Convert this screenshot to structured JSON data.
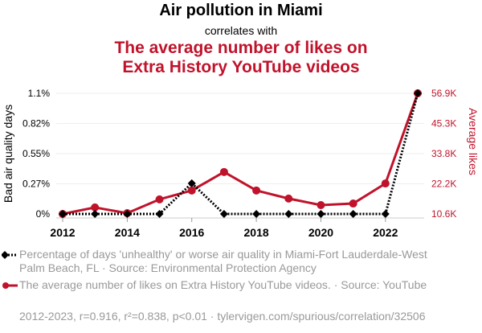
{
  "header": {
    "title": "Air pollution in Miami",
    "subtitle": "correlates with",
    "title2_line1": "The average number of likes on",
    "title2_line2": "Extra History YouTube videos"
  },
  "legend": {
    "series1": "Percentage of days 'unhealthy' or worse air quality in Miami-Fort Lauderdale-West Palm Beach, FL · Source: Environmental Protection Agency",
    "series2": "The average number of likes on Extra History YouTube videos. · Source: YouTube"
  },
  "footer": "2012-2023, r=0.916, r²=0.838, p<0.01 · tylervigen.com/spurious/correlation/32506",
  "chart_data": {
    "type": "line",
    "title": "Air pollution in Miami correlates with The average number of likes on Extra History YouTube videos",
    "x": [
      2012,
      2013,
      2014,
      2015,
      2016,
      2017,
      2018,
      2019,
      2020,
      2021,
      2022,
      2023
    ],
    "xticks": [
      "2012",
      "2014",
      "2016",
      "2018",
      "2020",
      "2022"
    ],
    "ylabel": "Bad air quality days",
    "y2label": "Average likes",
    "yticks": [
      "0%",
      "0.27%",
      "0.55%",
      "0.82%",
      "1.1%"
    ],
    "y2ticks": [
      "10.6K",
      "22.2K",
      "33.8K",
      "45.3K",
      "56.9K"
    ],
    "ylim": [
      0,
      1.1
    ],
    "y2lim": [
      10.6,
      56.9
    ],
    "grid": true,
    "colors": {
      "series1": "#000000",
      "series2": "#c0132b"
    },
    "series": [
      {
        "name": "Bad air quality days (%)",
        "axis": "left",
        "values": [
          0,
          0,
          0,
          0,
          0.28,
          0,
          0,
          0,
          0,
          0,
          0,
          1.1
        ]
      },
      {
        "name": "Average likes (K)",
        "axis": "right",
        "values": [
          10.6,
          13.1,
          10.9,
          16.2,
          19.6,
          26.7,
          19.6,
          16.5,
          14.0,
          14.6,
          22.3,
          56.9
        ]
      }
    ]
  }
}
